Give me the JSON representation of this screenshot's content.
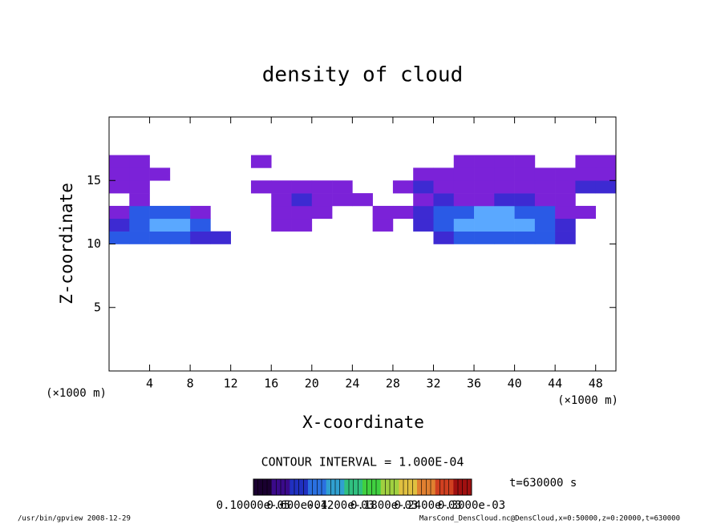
{
  "chart_data": {
    "type": "heatmap",
    "title": "density of cloud",
    "x_label": "X-coordinate",
    "y_label": "Z-coordinate",
    "x_unit": "(×1000 m)",
    "y_unit": "(×1000 m)",
    "xlim": [
      0,
      50
    ],
    "ylim": [
      0,
      20
    ],
    "xticks": [
      4,
      8,
      12,
      16,
      20,
      24,
      28,
      32,
      36,
      40,
      44,
      48
    ],
    "yticks": [
      5,
      10,
      15
    ],
    "x_bins": [
      0,
      2,
      4,
      6,
      8,
      10,
      12,
      14,
      16,
      18,
      20,
      22,
      24,
      26,
      28,
      30,
      32,
      34,
      36,
      38,
      40,
      42,
      44,
      46,
      48,
      50
    ],
    "z_bins": [
      10,
      11,
      12,
      13,
      14,
      15,
      16,
      17
    ],
    "values": [
      [
        0.00013,
        0.00013,
        0.00013,
        0.00013,
        8e-05,
        8e-05,
        null,
        null,
        null,
        null,
        null,
        null,
        null,
        null,
        null,
        null,
        8e-05,
        0.00013,
        0.00013,
        0.00013,
        0.00013,
        0.00013,
        8e-05,
        null,
        null
      ],
      [
        8e-05,
        0.00013,
        0.00018,
        0.00018,
        0.00013,
        null,
        null,
        null,
        3e-05,
        3e-05,
        null,
        null,
        null,
        3e-05,
        null,
        8e-05,
        0.00013,
        0.00018,
        0.00018,
        0.00018,
        0.00018,
        0.00013,
        8e-05,
        null,
        null
      ],
      [
        3e-05,
        0.00013,
        0.00013,
        0.00013,
        3e-05,
        null,
        null,
        null,
        3e-05,
        3e-05,
        3e-05,
        null,
        null,
        3e-05,
        3e-05,
        8e-05,
        0.00013,
        0.00013,
        0.00018,
        0.00018,
        0.00013,
        0.00013,
        3e-05,
        3e-05,
        null
      ],
      [
        null,
        3e-05,
        null,
        null,
        null,
        null,
        null,
        null,
        3e-05,
        8e-05,
        3e-05,
        3e-05,
        3e-05,
        null,
        null,
        3e-05,
        8e-05,
        3e-05,
        3e-05,
        8e-05,
        8e-05,
        3e-05,
        3e-05,
        null,
        null
      ],
      [
        3e-05,
        3e-05,
        null,
        null,
        null,
        null,
        null,
        3e-05,
        3e-05,
        3e-05,
        3e-05,
        3e-05,
        null,
        null,
        3e-05,
        8e-05,
        3e-05,
        3e-05,
        3e-05,
        3e-05,
        3e-05,
        3e-05,
        3e-05,
        8e-05,
        8e-05
      ],
      [
        3e-05,
        3e-05,
        3e-05,
        null,
        null,
        null,
        null,
        null,
        null,
        null,
        null,
        null,
        null,
        null,
        null,
        3e-05,
        3e-05,
        3e-05,
        3e-05,
        3e-05,
        3e-05,
        3e-05,
        3e-05,
        3e-05,
        3e-05
      ],
      [
        3e-05,
        3e-05,
        null,
        null,
        null,
        null,
        null,
        3e-05,
        null,
        null,
        null,
        null,
        null,
        null,
        null,
        null,
        null,
        3e-05,
        3e-05,
        3e-05,
        3e-05,
        null,
        null,
        3e-05,
        3e-05
      ]
    ],
    "color_scale": {
      "values": [
        3e-05,
        8e-05,
        0.00013,
        0.00018
      ],
      "colors": [
        "#7b22d8",
        "#3d2ad2",
        "#2a5ae6",
        "#5aa8ff"
      ]
    },
    "contour_interval": "CONTOUR INTERVAL = 1.000E-04",
    "time_label": "t=630000 s",
    "colorbar": {
      "colors": [
        "#1a0030",
        "#3a0a8a",
        "#2030c0",
        "#2a70e0",
        "#30a0d0",
        "#30c080",
        "#40d040",
        "#a0d040",
        "#e0c040",
        "#e08030",
        "#d04020",
        "#a01010"
      ],
      "labels": [
        "0.10000e-05",
        "0.600e-04",
        "0.1200e-03",
        "0.1800e-03",
        "0.2400e-03",
        "0.3000e-03"
      ]
    },
    "footer_left": "/usr/bin/gpview  2008-12-29",
    "footer_right": "MarsCond_DensCloud.nc@DensCloud,x=0:50000,z=0:20000,t=630000"
  }
}
